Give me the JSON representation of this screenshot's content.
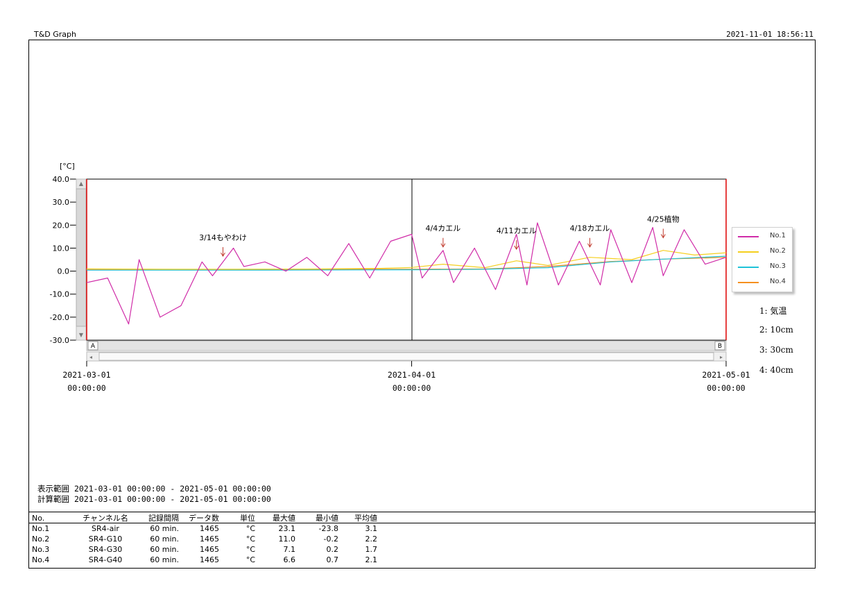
{
  "header": {
    "app_title": "T&D Graph",
    "print_datetime": "2021-11-01 18:56:11"
  },
  "chart_data": {
    "type": "line",
    "unit_label": "[°C]",
    "ylim": [
      -30,
      40
    ],
    "y_ticks": [
      "40.0",
      "30.0",
      "20.0",
      "10.0",
      "0.0",
      "-10.0",
      "-20.0",
      "-30.0"
    ],
    "x_range": [
      "2021-03-01 00:00:00",
      "2021-05-01 00:00:00"
    ],
    "x_ticks": [
      {
        "date": "2021-03-01",
        "time": "00:00:00"
      },
      {
        "date": "2021-04-01",
        "time": "00:00:00"
      },
      {
        "date": "2021-05-01",
        "time": "00:00:00"
      }
    ],
    "cursor_labels": {
      "a": "A",
      "b": "B"
    },
    "grid": false,
    "legend_position": "right",
    "series": [
      {
        "name": "No.1",
        "color": "#d02ca8",
        "x": [
          "03-01",
          "03-03",
          "03-05",
          "03-06",
          "03-08",
          "03-10",
          "03-12",
          "03-13",
          "03-15",
          "03-16",
          "03-18",
          "03-20",
          "03-22",
          "03-24",
          "03-26",
          "03-28",
          "03-30",
          "04-01",
          "04-02",
          "04-04",
          "04-05",
          "04-07",
          "04-09",
          "04-11",
          "04-12",
          "04-13",
          "04-15",
          "04-17",
          "04-19",
          "04-20",
          "04-22",
          "04-24",
          "04-25",
          "04-27",
          "04-29",
          "05-01"
        ],
        "y": [
          -5,
          -3,
          -23,
          5,
          -20,
          -15,
          4,
          -2,
          10,
          2,
          4,
          0,
          6,
          -2,
          12,
          -3,
          13,
          16,
          -3,
          9,
          -5,
          10,
          -8,
          16,
          -6,
          21,
          -6,
          13,
          -6,
          18,
          -5,
          19,
          -2,
          18,
          3,
          6
        ]
      },
      {
        "name": "No.2",
        "color": "#f5cf1e",
        "x": [
          "03-01",
          "03-08",
          "03-15",
          "03-22",
          "03-29",
          "04-01",
          "04-04",
          "04-08",
          "04-11",
          "04-14",
          "04-18",
          "04-22",
          "04-25",
          "04-28",
          "05-01"
        ],
        "y": [
          1.0,
          0.8,
          0.8,
          0.9,
          1.2,
          1.6,
          3.0,
          1.5,
          4.5,
          2.5,
          6.0,
          5.0,
          9.0,
          7.0,
          8.0
        ]
      },
      {
        "name": "No.3",
        "color": "#1ec3d8",
        "x": [
          "03-01",
          "03-15",
          "04-01",
          "04-08",
          "04-14",
          "04-20",
          "04-25",
          "05-01"
        ],
        "y": [
          0.4,
          0.4,
          0.6,
          0.8,
          1.5,
          4.0,
          5.2,
          6.5
        ]
      },
      {
        "name": "No.4",
        "color": "#f5901e",
        "x": [
          "03-01",
          "03-15",
          "04-01",
          "04-08",
          "04-14",
          "04-20",
          "04-25",
          "05-01"
        ],
        "y": [
          0.8,
          0.7,
          0.8,
          1.0,
          2.0,
          4.2,
          5.2,
          6.0
        ]
      }
    ],
    "annotations": [
      {
        "date": "03-14",
        "label": "3/14もやわけ",
        "value": 5
      },
      {
        "date": "04-04",
        "label": "4/4カエル",
        "value": 9
      },
      {
        "date": "04-11",
        "label": "4/11カエル",
        "value": 8
      },
      {
        "date": "04-18",
        "label": "4/18カエル",
        "value": 9
      },
      {
        "date": "04-25",
        "label": "4/25植物",
        "value": 13
      }
    ]
  },
  "channel_notes": [
    "1: 気温",
    "2: 10cm",
    "3: 30cm",
    "4: 40cm"
  ],
  "ranges": {
    "display_label": "表示範囲",
    "display_value": "2021-03-01 00:00:00 - 2021-05-01 00:00:00",
    "calc_label": "計算範囲",
    "calc_value": "2021-03-01 00:00:00 - 2021-05-01 00:00:00"
  },
  "table": {
    "headers": [
      "No.",
      "チャンネル名",
      "記録間隔",
      "データ数",
      "単位",
      "最大値",
      "最小値",
      "平均値"
    ],
    "rows": [
      [
        "No.1",
        "SR4-air",
        "60 min.",
        "1465",
        "°C",
        "23.1",
        "-23.8",
        "3.1"
      ],
      [
        "No.2",
        "SR4-G10",
        "60 min.",
        "1465",
        "°C",
        "11.0",
        "-0.2",
        "2.2"
      ],
      [
        "No.3",
        "SR4-G30",
        "60 min.",
        "1465",
        "°C",
        "7.1",
        "0.2",
        "1.7"
      ],
      [
        "No.4",
        "SR4-G40",
        "60 min.",
        "1465",
        "°C",
        "6.6",
        "0.7",
        "2.1"
      ]
    ]
  }
}
